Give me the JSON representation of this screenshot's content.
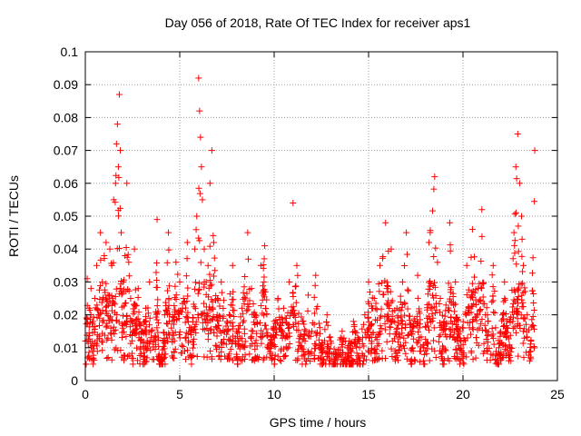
{
  "chart_data": {
    "type": "scatter",
    "title": "Day 056 of 2018, Rate Of TEC Index for receiver aps1",
    "xlabel": "GPS time / hours",
    "ylabel": "ROTI / TECUs",
    "xlim": [
      0,
      25
    ],
    "ylim": [
      0,
      0.1
    ],
    "xticks": [
      0,
      5,
      10,
      15,
      20,
      25
    ],
    "xtick_labels": [
      "0",
      "5",
      "10",
      "15",
      "20",
      "25"
    ],
    "yticks": [
      0,
      0.01,
      0.02,
      0.03,
      0.04,
      0.05,
      0.06,
      0.07,
      0.08,
      0.09,
      0.1
    ],
    "ytick_labels": [
      "0",
      "0.01",
      "0.02",
      "0.03",
      "0.04",
      "0.05",
      "0.06",
      "0.07",
      "0.08",
      "0.09",
      "0.1"
    ],
    "grid": true,
    "marker": "+",
    "color": "#ff0000",
    "series": [
      {
        "name": "aps1",
        "x": [
          0.0,
          0.1,
          0.2,
          0.3,
          0.4,
          0.5,
          0.6,
          0.7,
          0.8,
          0.9,
          1.0,
          1.1,
          1.2,
          1.3,
          1.4,
          1.5,
          1.6,
          1.65,
          1.7,
          1.75,
          1.8,
          1.85,
          1.9,
          2.0,
          2.1,
          2.2,
          2.3,
          2.4,
          2.5,
          2.6,
          2.8,
          3.0,
          3.2,
          3.4,
          3.6,
          3.8,
          3.9,
          4.0,
          4.2,
          4.4,
          4.6,
          4.8,
          5.0,
          5.2,
          5.4,
          5.6,
          5.8,
          5.9,
          6.0,
          6.05,
          6.1,
          6.15,
          6.2,
          6.3,
          6.4,
          6.5,
          6.6,
          6.7,
          6.8,
          7.0,
          7.2,
          7.5,
          7.8,
          8.0,
          8.3,
          8.6,
          8.8,
          9.0,
          9.3,
          9.5,
          9.7,
          10.0,
          10.2,
          10.5,
          10.8,
          11.0,
          11.2,
          11.5,
          11.8,
          12.0,
          12.2,
          12.5,
          12.8,
          13.0,
          13.3,
          13.6,
          13.9,
          14.2,
          14.5,
          14.8,
          15.0,
          15.3,
          15.6,
          15.9,
          16.2,
          16.5,
          16.8,
          17.0,
          17.3,
          17.6,
          17.9,
          18.2,
          18.5,
          18.8,
          19.0,
          19.3,
          19.6,
          19.9,
          20.2,
          20.5,
          20.8,
          21.0,
          21.3,
          21.6,
          21.9,
          22.2,
          22.5,
          22.7,
          22.8,
          22.9,
          23.0,
          23.1,
          23.2,
          23.4,
          23.6,
          23.8
        ],
        "y": [
          0.012,
          0.031,
          0.022,
          0.028,
          0.018,
          0.025,
          0.035,
          0.02,
          0.045,
          0.03,
          0.038,
          0.042,
          0.026,
          0.04,
          0.035,
          0.055,
          0.06,
          0.072,
          0.078,
          0.065,
          0.087,
          0.07,
          0.045,
          0.03,
          0.038,
          0.06,
          0.036,
          0.025,
          0.018,
          0.04,
          0.028,
          0.015,
          0.022,
          0.03,
          0.012,
          0.049,
          0.008,
          0.005,
          0.02,
          0.045,
          0.018,
          0.036,
          0.03,
          0.025,
          0.042,
          0.015,
          0.04,
          0.05,
          0.092,
          0.082,
          0.074,
          0.065,
          0.055,
          0.04,
          0.03,
          0.035,
          0.06,
          0.07,
          0.042,
          0.025,
          0.03,
          0.018,
          0.035,
          0.015,
          0.022,
          0.045,
          0.028,
          0.02,
          0.035,
          0.041,
          0.01,
          0.018,
          0.025,
          0.022,
          0.03,
          0.054,
          0.035,
          0.018,
          0.026,
          0.015,
          0.032,
          0.01,
          0.02,
          0.012,
          0.008,
          0.015,
          0.01,
          0.018,
          0.012,
          0.02,
          0.03,
          0.025,
          0.035,
          0.048,
          0.04,
          0.022,
          0.03,
          0.045,
          0.015,
          0.032,
          0.01,
          0.042,
          0.062,
          0.025,
          0.018,
          0.048,
          0.03,
          0.012,
          0.035,
          0.046,
          0.028,
          0.052,
          0.02,
          0.035,
          0.01,
          0.03,
          0.018,
          0.045,
          0.065,
          0.075,
          0.06,
          0.05,
          0.035,
          0.02,
          0.012,
          0.07
        ],
        "n_points_drawn": 1800,
        "note": "approximate readout; dense noisy scatter around these levels"
      }
    ]
  }
}
